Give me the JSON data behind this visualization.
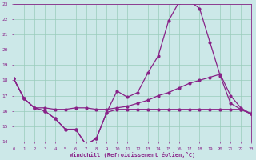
{
  "xlabel": "Windchill (Refroidissement éolien,°C)",
  "bg_color": "#cce8e8",
  "line_color": "#882288",
  "grid_color": "#99ccbb",
  "axis_color": "#882288",
  "tick_color": "#882288",
  "xlim": [
    0,
    23
  ],
  "ylim": [
    14,
    23
  ],
  "xticks": [
    0,
    1,
    2,
    3,
    4,
    5,
    6,
    7,
    8,
    9,
    10,
    11,
    12,
    13,
    14,
    15,
    16,
    17,
    18,
    19,
    20,
    21,
    22,
    23
  ],
  "yticks": [
    14,
    15,
    16,
    17,
    18,
    19,
    20,
    21,
    22,
    23
  ],
  "line1_x": [
    0,
    1,
    2,
    3,
    4,
    5,
    6,
    7,
    8,
    9,
    10,
    11,
    12,
    13,
    14,
    15,
    16,
    17,
    18,
    19,
    20,
    21,
    22,
    23
  ],
  "line1_y": [
    18.1,
    16.8,
    16.2,
    16.0,
    15.5,
    14.8,
    14.8,
    13.8,
    14.2,
    15.9,
    17.3,
    16.9,
    17.2,
    18.5,
    19.6,
    21.9,
    23.1,
    23.2,
    22.7,
    20.5,
    18.3,
    16.5,
    16.1,
    15.8
  ],
  "line2_x": [
    0,
    1,
    2,
    3,
    4,
    5,
    6,
    7,
    8,
    9,
    10,
    11,
    12,
    13,
    14,
    15,
    16,
    17,
    18,
    19,
    20,
    21,
    22,
    23
  ],
  "line2_y": [
    18.1,
    16.8,
    16.2,
    16.2,
    16.1,
    16.1,
    16.2,
    16.2,
    16.1,
    16.1,
    16.2,
    16.3,
    16.5,
    16.7,
    17.0,
    17.2,
    17.5,
    17.8,
    18.0,
    18.2,
    18.4,
    17.0,
    16.2,
    15.8
  ],
  "line3_x": [
    0,
    1,
    2,
    3,
    4,
    5,
    6,
    7,
    8,
    9,
    10,
    11,
    12,
    13,
    14,
    15,
    16,
    17,
    18,
    19,
    20,
    21,
    22,
    23
  ],
  "line3_y": [
    18.1,
    16.8,
    16.2,
    16.0,
    15.5,
    14.8,
    14.8,
    13.8,
    14.2,
    15.9,
    16.1,
    16.1,
    16.1,
    16.1,
    16.1,
    16.1,
    16.1,
    16.1,
    16.1,
    16.1,
    16.1,
    16.1,
    16.1,
    15.8
  ]
}
